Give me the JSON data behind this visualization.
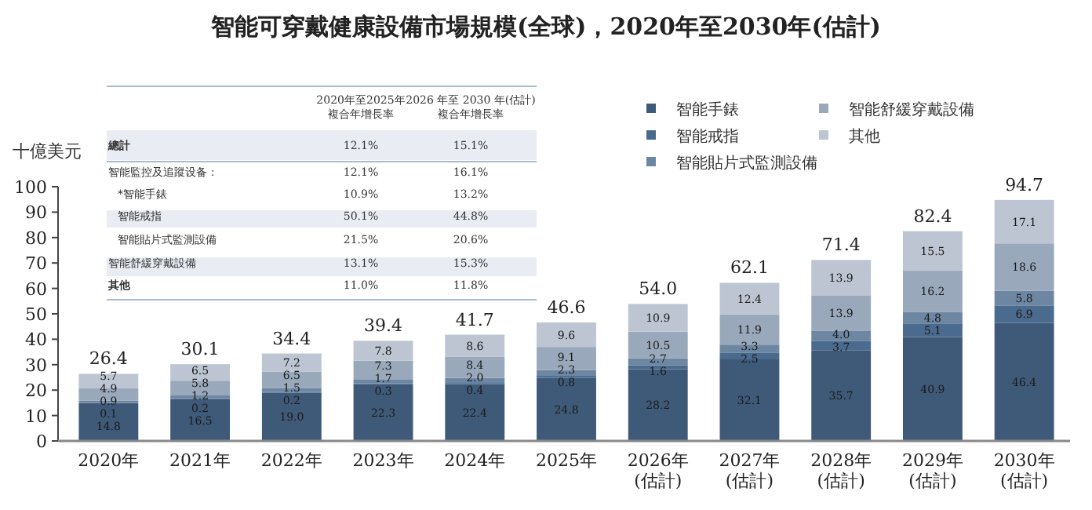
{
  "chart_data": {
    "type": "bar",
    "stacked": true,
    "title": "智能可穿戴健康設備市場規模(全球)，2020年至2030年(估計)",
    "ylabel": "十億美元",
    "categories": [
      "2020年",
      "2021年",
      "2022年",
      "2023年",
      "2024年",
      "2025年",
      "2026年\n(估計)",
      "2027年\n(估計)",
      "2028年\n(估計)",
      "2029年\n(估計)",
      "2030年\n(估計)"
    ],
    "series": [
      {
        "name": "智能手錶",
        "color": "#3f5a78",
        "values": [
          14.8,
          16.5,
          19.0,
          22.3,
          22.4,
          24.8,
          28.2,
          32.1,
          35.7,
          40.9,
          46.4
        ],
        "value_labels": [
          "14.8",
          "16.5",
          "19.0",
          "22.3",
          "22.4",
          "24.8",
          "28.2",
          "32.1",
          "35.7",
          "40.9",
          "46.4"
        ]
      },
      {
        "name": "智能戒指",
        "color": "#4a6a8e",
        "values": [
          0.1,
          0.2,
          0.2,
          0.3,
          0.4,
          0.8,
          1.6,
          2.5,
          3.7,
          5.1,
          6.9
        ],
        "value_labels": [
          "0.1",
          "0.2",
          "0.2",
          "0.3",
          "0.4",
          "0.8",
          "1.6",
          "2.5",
          "3.7",
          "5.1",
          "6.9"
        ]
      },
      {
        "name": "智能貼片式監測設備",
        "color": "#6d87a3",
        "values": [
          0.9,
          1.2,
          1.5,
          1.7,
          2.0,
          2.3,
          2.7,
          3.3,
          4.0,
          4.8,
          5.8
        ],
        "value_labels": [
          "0.9",
          "1.2",
          "1.5",
          "1.7",
          "2.0",
          "2.3",
          "2.7",
          "3.3",
          "4.0",
          "4.8",
          "5.8"
        ]
      },
      {
        "name": "智能舒緩穿戴設備",
        "color": "#99a9bb",
        "values": [
          4.9,
          5.8,
          6.5,
          7.3,
          8.4,
          9.1,
          10.5,
          11.9,
          13.9,
          16.2,
          18.6
        ],
        "value_labels": [
          "4.9",
          "5.8",
          "6.5",
          "7.3",
          "8.4",
          "9.1",
          "10.5",
          "11.9",
          "13.9",
          "16.2",
          "18.6"
        ]
      },
      {
        "name": "其他",
        "color": "#bcc5d1",
        "values": [
          5.7,
          6.5,
          7.2,
          7.8,
          8.6,
          9.6,
          10.9,
          12.4,
          13.9,
          15.5,
          17.1
        ],
        "value_labels": [
          "5.7",
          "6.5",
          "7.2",
          "7.8",
          "8.6",
          "9.6",
          "10.9",
          "12.4",
          "13.9",
          "15.5",
          "17.1"
        ]
      }
    ],
    "totals": [
      "26.4",
      "30.1",
      "34.4",
      "39.4",
      "41.7",
      "46.6",
      "54.0",
      "62.1",
      "71.4",
      "82.4",
      "94.7"
    ],
    "ylim": [
      0,
      100
    ],
    "yticks": [
      0,
      10,
      20,
      30,
      40,
      50,
      60,
      70,
      80,
      90,
      100
    ],
    "grid": false,
    "legend": "top right",
    "annotations": [
      "2020年至2025年",
      "複合年增長率",
      "2026 年至 2030 年(估計)",
      "複合年增長率",
      "總計",
      "12.1%",
      "15.1%",
      "智能監控及追蹤设备：",
      "12.1%",
      "16.1%",
      "*智能手錶",
      "10.9%",
      "13.2%",
      "智能戒指",
      "50.1%",
      "44.8%",
      "智能貼片式監測設備",
      "21.5%",
      "20.6%",
      "智能舒緩穿戴設備",
      "13.1%",
      "15.3%",
      "其他",
      "11.0%",
      "11.8%"
    ]
  }
}
